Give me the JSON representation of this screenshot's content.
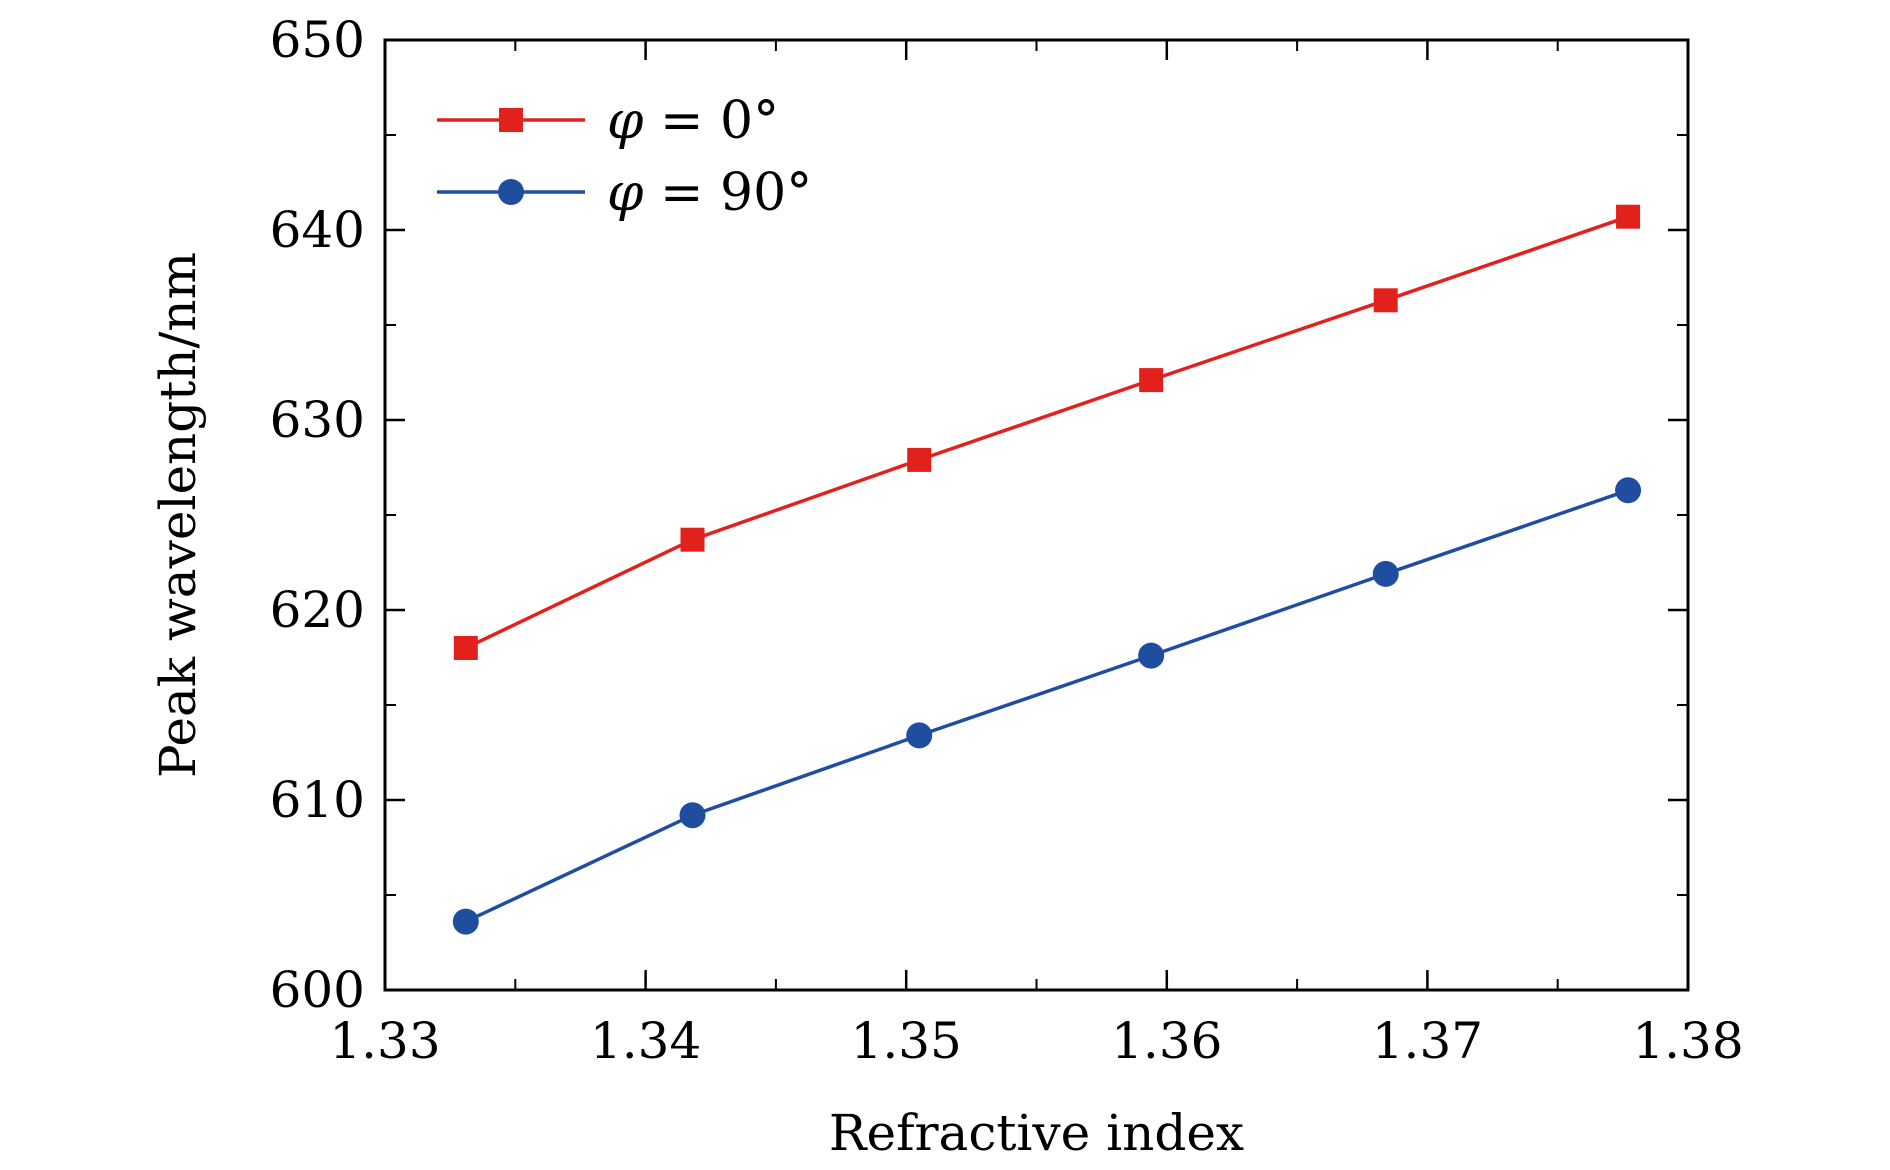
{
  "chart_data": {
    "type": "line",
    "title": "",
    "xlabel": "Refractive index",
    "ylabel": "Peak wavelength/nm",
    "xlim": [
      1.33,
      1.38
    ],
    "ylim": [
      600,
      650
    ],
    "xticks": [
      1.33,
      1.34,
      1.35,
      1.36,
      1.37,
      1.38
    ],
    "xtick_labels": [
      "1.33",
      "1.34",
      "1.35",
      "1.36",
      "1.37",
      "1.38"
    ],
    "yticks": [
      600,
      610,
      620,
      630,
      640,
      650
    ],
    "ytick_labels": [
      "600",
      "610",
      "620",
      "630",
      "640",
      "650"
    ],
    "grid": false,
    "legend_position": "top-left",
    "series": [
      {
        "name": "φ = 0°",
        "name_symbol": "φ",
        "name_rest": " = 0°",
        "color": "#e3211c",
        "marker": "square",
        "x": [
          1.3331,
          1.3418,
          1.3505,
          1.3594,
          1.3684,
          1.3777
        ],
        "values": [
          618.0,
          623.7,
          627.9,
          632.1,
          636.3,
          640.7
        ]
      },
      {
        "name": "φ = 90°",
        "name_symbol": "φ",
        "name_rest": " = 90°",
        "color": "#1f4ea1",
        "marker": "circle",
        "x": [
          1.3331,
          1.3418,
          1.3505,
          1.3594,
          1.3684,
          1.3777
        ],
        "values": [
          603.6,
          609.2,
          613.4,
          617.6,
          621.9,
          626.3
        ]
      }
    ]
  }
}
